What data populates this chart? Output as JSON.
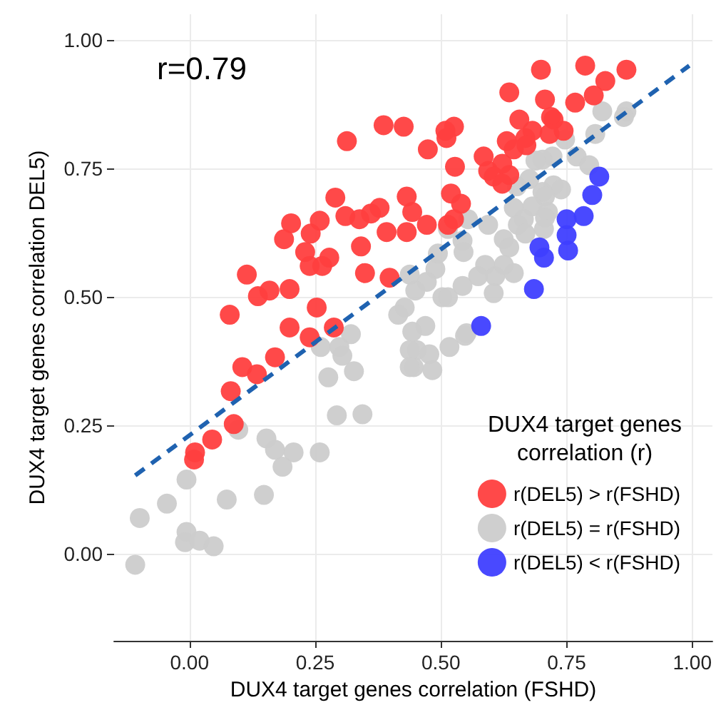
{
  "chart_data": {
    "type": "scatter",
    "xlabel": "DUX4 target genes correlation (FSHD)",
    "ylabel": "DUX4 target genes correlation DEL5)",
    "legend_title": "DUX4 target genes\ncorrelation (r)",
    "annotations": [
      "r=0.79"
    ],
    "xlim": [
      -0.15,
      1.04
    ],
    "ylim": [
      -0.17,
      1.05
    ],
    "xticks": [
      {
        "value": 0,
        "label": "0.00"
      },
      0.25,
      {
        "value": 0.5,
        "label": "0.50"
      },
      0.75,
      {
        "value": 1,
        "label": "1.00"
      }
    ],
    "yticks": [
      {
        "value": 0,
        "label": "0.00"
      },
      0.25,
      {
        "value": 0.5,
        "label": "0.50"
      },
      0.75,
      {
        "value": 1,
        "label": "1.00"
      }
    ],
    "grid": true,
    "legend": "bottom right",
    "marker": "circle",
    "series": [
      {
        "name": "r(DEL5) > r(FSHD)",
        "color": "#ff3f3f",
        "x": [
          0.386,
          0.426,
          0.313,
          0.29,
          0.432,
          0.31,
          0.338,
          0.361,
          0.378,
          0.202,
          0.259,
          0.188,
          0.241,
          0.392,
          0.432,
          0.341,
          0.23,
          0.239,
          0.264,
          0.278,
          0.114,
          0.349,
          0.398,
          0.136,
          0.159,
          0.199,
          0.08,
          0.253,
          0.199,
          0.287,
          0.239,
          0.105,
          0.134,
          0.17,
          0.082,
          0.088,
          0.045,
          0.011,
          0.009,
          0.699,
          0.787,
          0.869,
          0.827,
          0.636,
          0.707,
          0.804,
          0.767,
          0.719,
          0.724,
          0.656,
          0.526,
          0.509,
          0.511,
          0.744,
          0.682,
          0.716,
          0.631,
          0.668,
          0.67,
          0.645,
          0.474,
          0.585,
          0.528,
          0.622,
          0.594,
          0.605,
          0.636,
          0.622,
          0.443,
          0.52,
          0.54,
          0.472,
          0.514,
          0.526
        ],
        "values": [
          0.834,
          0.831,
          0.803,
          0.693,
          0.695,
          0.657,
          0.651,
          0.662,
          0.673,
          0.643,
          0.648,
          0.612,
          0.623,
          0.626,
          0.626,
          0.598,
          0.587,
          0.56,
          0.56,
          0.576,
          0.543,
          0.546,
          0.537,
          0.501,
          0.512,
          0.515,
          0.465,
          0.479,
          0.44,
          0.44,
          0.421,
          0.363,
          0.349,
          0.382,
          0.316,
          0.252,
          0.222,
          0.197,
          0.183,
          0.942,
          0.95,
          0.942,
          0.92,
          0.898,
          0.884,
          0.892,
          0.878,
          0.85,
          0.845,
          0.845,
          0.831,
          0.823,
          0.809,
          0.823,
          0.823,
          0.817,
          0.803,
          0.809,
          0.795,
          0.787,
          0.787,
          0.773,
          0.753,
          0.759,
          0.745,
          0.734,
          0.737,
          0.72,
          0.665,
          0.701,
          0.681,
          0.64,
          0.64,
          0.651
        ]
      },
      {
        "name": "r(DEL5) = r(FSHD)",
        "color": "#cccccc",
        "x": [
          0.821,
          0.869,
          0.864,
          0.807,
          0.747,
          0.77,
          0.795,
          0.722,
          0.702,
          0.688,
          0.676,
          0.651,
          0.724,
          0.739,
          0.702,
          0.707,
          0.645,
          0.682,
          0.713,
          0.707,
          0.665,
          0.653,
          0.668,
          0.705,
          0.625,
          0.636,
          0.554,
          0.514,
          0.543,
          0.545,
          0.594,
          0.588,
          0.574,
          0.608,
          0.645,
          0.625,
          0.605,
          0.543,
          0.503,
          0.514,
          0.489,
          0.494,
          0.472,
          0.449,
          0.438,
          0.428,
          0.443,
          0.469,
          0.551,
          0.452,
          0.477,
          0.446,
          0.483,
          0.517,
          0.548,
          0.321,
          0.261,
          0.298,
          0.304,
          0.276,
          0.327,
          0.293,
          0.344,
          0.097,
          0.153,
          0.17,
          0.207,
          0.259,
          0.185,
          -0.006,
          0.148,
          0.074,
          -0.045,
          -0.099,
          -0.006,
          -0.009,
          0.02,
          0.048,
          -0.108,
          0.415,
          0.438,
          0.438
        ],
        "values": [
          0.861,
          0.861,
          0.85,
          0.817,
          0.806,
          0.773,
          0.756,
          0.773,
          0.767,
          0.765,
          0.729,
          0.715,
          0.717,
          0.709,
          0.704,
          0.695,
          0.673,
          0.676,
          0.665,
          0.654,
          0.651,
          0.64,
          0.623,
          0.632,
          0.612,
          0.596,
          0.651,
          0.632,
          0.609,
          0.587,
          0.64,
          0.562,
          0.54,
          0.54,
          0.546,
          0.562,
          0.507,
          0.521,
          0.499,
          0.499,
          0.554,
          0.584,
          0.529,
          0.512,
          0.543,
          0.479,
          0.432,
          0.443,
          0.429,
          0.396,
          0.388,
          0.363,
          0.357,
          0.402,
          0.424,
          0.427,
          0.402,
          0.402,
          0.385,
          0.343,
          0.355,
          0.269,
          0.271,
          0.241,
          0.224,
          0.202,
          0.197,
          0.197,
          0.169,
          0.144,
          0.114,
          0.105,
          0.097,
          0.069,
          0.042,
          0.022,
          0.025,
          0.014,
          -0.022,
          0.465,
          0.396,
          0.363
        ]
      },
      {
        "name": "r(DEL5) < r(FSHD)",
        "color": "#3f3fff",
        "x": [
          0.815,
          0.801,
          0.784,
          0.75,
          0.75,
          0.753,
          0.696,
          0.705,
          0.685,
          0.58
        ],
        "values": [
          0.734,
          0.698,
          0.657,
          0.651,
          0.62,
          0.59,
          0.596,
          0.576,
          0.515,
          0.443
        ]
      },
      {
        "type": "line",
        "color": "#1f62b0",
        "line_style": "dashed",
        "marker": "none",
        "x": [
          -0.108,
          0.994
        ],
        "values": [
          0.152,
          0.95
        ]
      }
    ]
  }
}
